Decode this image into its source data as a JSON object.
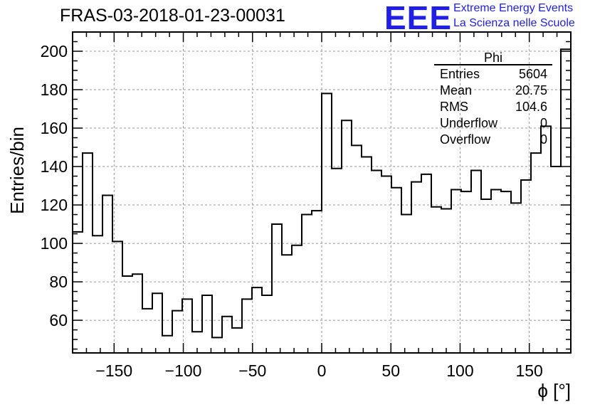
{
  "header": {
    "title": "FRAS-03-2018-01-23-00031",
    "logo": {
      "mark": "EEE",
      "line1": "Extreme Energy Events",
      "line2": "La Scienza nelle Scuole",
      "color": "#1f1fe6"
    }
  },
  "stats_box": {
    "title": "Phi",
    "rows": [
      {
        "label": "Entries",
        "value": "5604"
      },
      {
        "label": "Mean",
        "value": "20.75"
      },
      {
        "label": "RMS",
        "value": "104.6"
      },
      {
        "label": "Underflow",
        "value": "0"
      },
      {
        "label": "Overflow",
        "value": "0"
      }
    ]
  },
  "chart_data": {
    "type": "histogram",
    "title": "FRAS-03-2018-01-23-00031",
    "xlabel": "ϕ [°]",
    "ylabel": "Entries/bin",
    "xlim": [
      -180,
      180
    ],
    "ylim": [
      43,
      210
    ],
    "xticks": [
      -150,
      -100,
      -50,
      0,
      50,
      100,
      150
    ],
    "yticks": [
      60,
      80,
      100,
      120,
      140,
      160,
      180,
      200
    ],
    "grid": true,
    "bin_edges_start": -180,
    "bin_width": 7.2,
    "values": [
      106,
      147,
      104,
      125,
      101,
      83,
      84,
      66,
      74,
      52,
      65,
      71,
      54,
      73,
      51,
      62,
      56,
      71,
      77,
      73,
      110,
      94,
      99,
      115,
      117,
      178,
      139,
      164,
      151,
      145,
      138,
      135,
      129,
      115,
      132,
      136,
      119,
      118,
      128,
      127,
      138,
      123,
      128,
      127,
      121,
      133,
      147,
      161,
      140,
      201
    ],
    "line_color": "#000000"
  }
}
